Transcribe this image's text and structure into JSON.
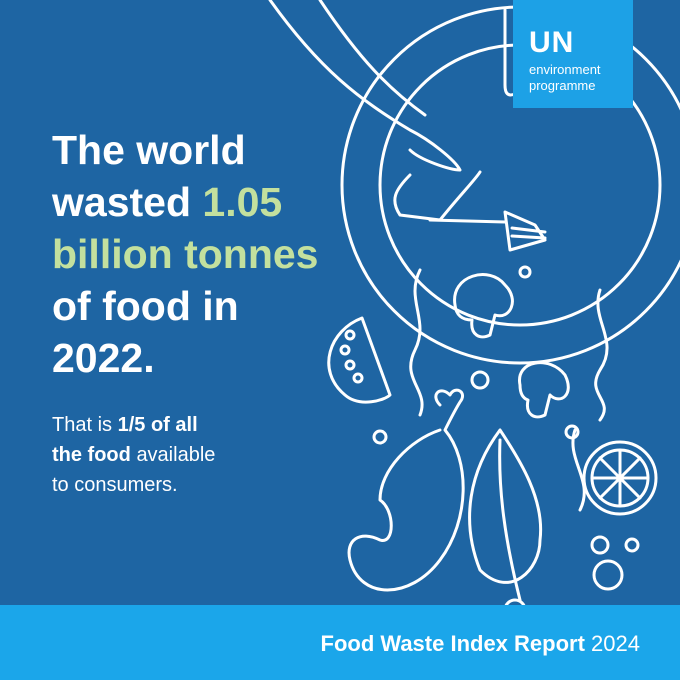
{
  "logo": {
    "acronym": "UN",
    "line1": "environment",
    "line2": "programme"
  },
  "headline": {
    "line1": "The world",
    "line2_a": "wasted",
    "line2_b": "1.05",
    "line3": "billion tonnes",
    "line4": "of food in",
    "line5": "2022."
  },
  "subtext": {
    "a": "That is",
    "b": "1/5 of all",
    "c": "the food",
    "d": "available",
    "e": "to consumers."
  },
  "footer": {
    "title": "Food Waste Index Report",
    "year": "2024"
  }
}
